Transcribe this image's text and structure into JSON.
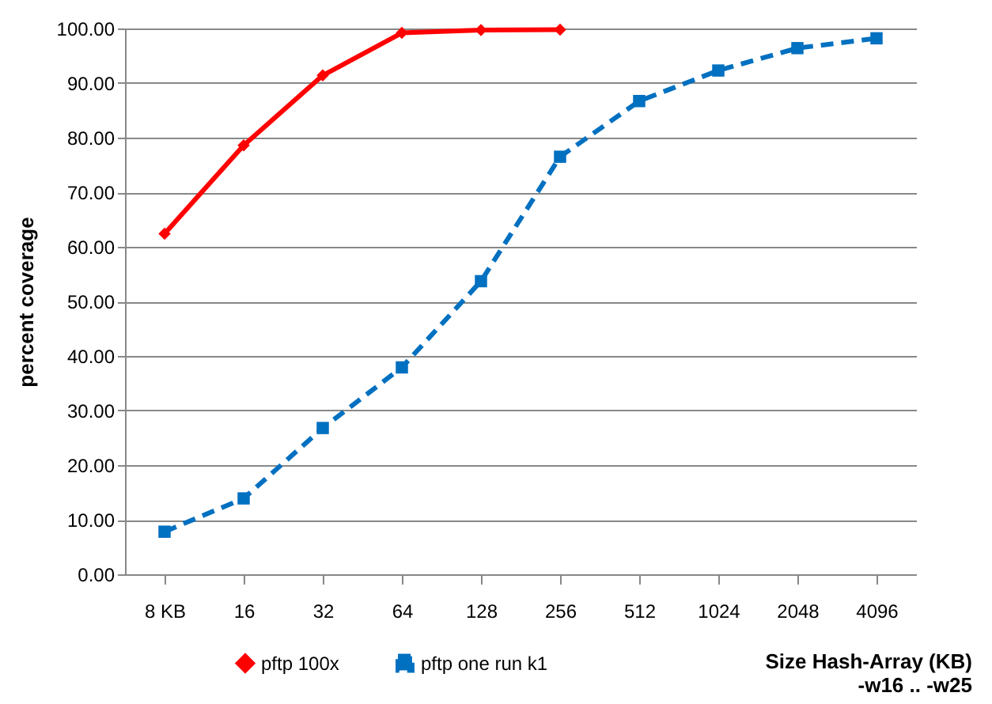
{
  "chart_data": {
    "type": "line",
    "xlabel": "Size Hash-Array (KB)\n-w16 .. -w25",
    "ylabel": "percent coverage",
    "categories": [
      "8 KB",
      "16",
      "32",
      "64",
      "128",
      "256",
      "512",
      "1024",
      "2048",
      "4096"
    ],
    "series": [
      {
        "name": "pftp 100x",
        "color": "#ff0000",
        "marker": "diamond",
        "line_style": "solid",
        "values": [
          62.4,
          78.6,
          91.4,
          99.2,
          99.7,
          99.8,
          null,
          null,
          null,
          null
        ]
      },
      {
        "name": "pftp one run k1",
        "color": "#0070c0",
        "marker": "square",
        "line_style": "dashed",
        "values": [
          7.8,
          13.9,
          26.8,
          37.9,
          53.7,
          76.5,
          86.7,
          92.3,
          96.4,
          98.2
        ]
      }
    ],
    "ylim": [
      0,
      100
    ],
    "yticks": [
      {
        "value": 0,
        "label": "0.00"
      },
      {
        "value": 10,
        "label": "10.00"
      },
      {
        "value": 20,
        "label": "20.00"
      },
      {
        "value": 30,
        "label": "30.00"
      },
      {
        "value": 40,
        "label": "40.00"
      },
      {
        "value": 50,
        "label": "50.00"
      },
      {
        "value": 60,
        "label": "60.00"
      },
      {
        "value": 70,
        "label": "70.00"
      },
      {
        "value": 80,
        "label": "80.00"
      },
      {
        "value": 90,
        "label": "90.00"
      },
      {
        "value": 100,
        "label": "100.00"
      }
    ],
    "grid": "y",
    "legend": "bottom"
  }
}
